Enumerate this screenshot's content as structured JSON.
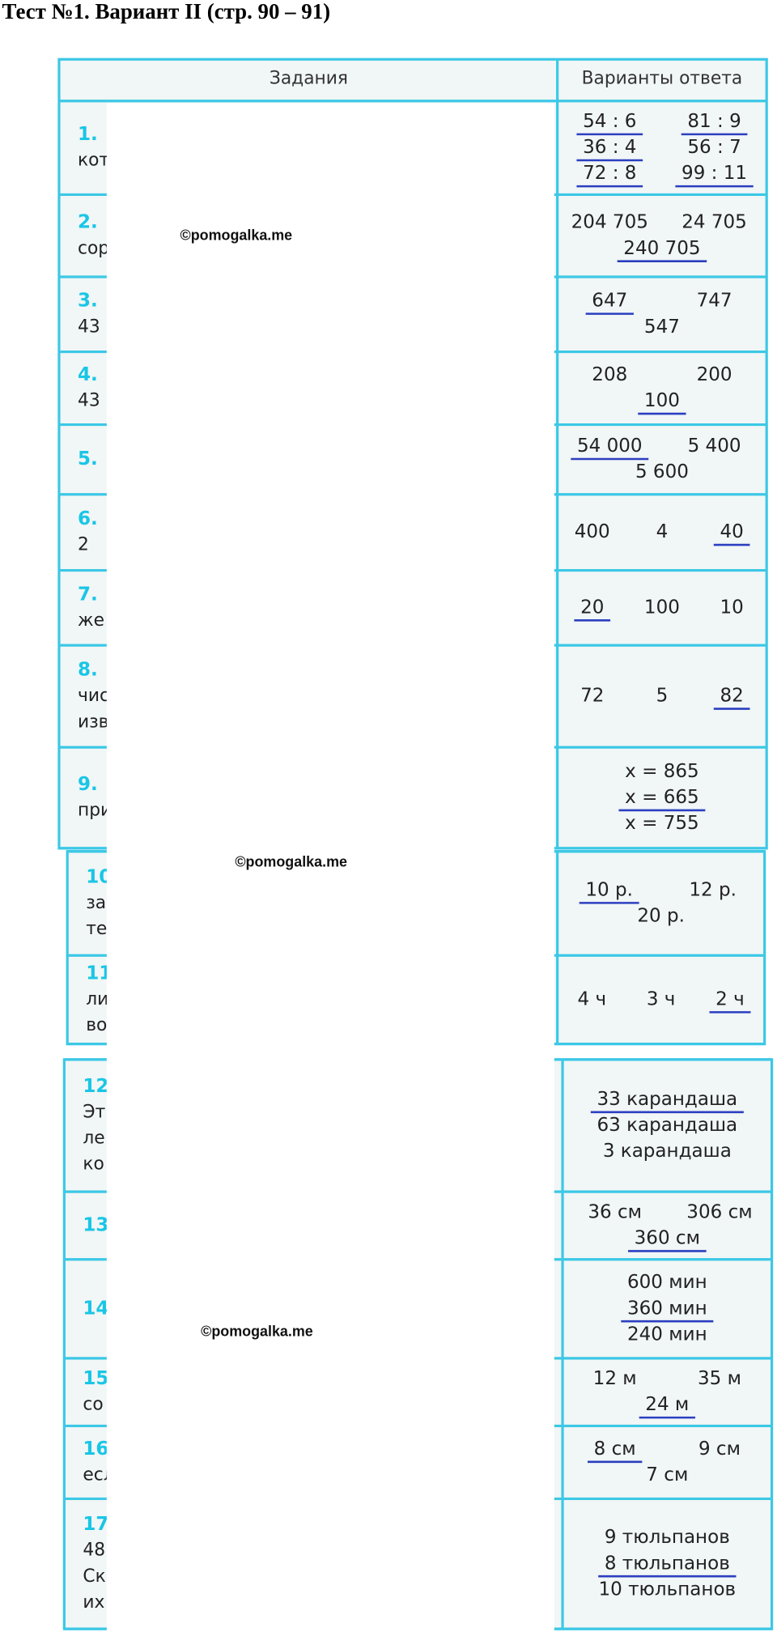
{
  "header": {
    "title": "Тест №1. Вариант II (стр. 90 – 91)"
  },
  "table": {
    "columns": [
      "Задания",
      "Варианты  ответа"
    ],
    "rows": [
      {
        "number": "1.",
        "fragments": [
          "кот"
        ],
        "answers": [
          [
            {
              "text": "54 : 6",
              "correct": true
            },
            {
              "text": "81 : 9",
              "correct": true
            }
          ],
          [
            {
              "text": "36 : 4",
              "correct": true
            },
            {
              "text": "56 : 7",
              "correct": false
            }
          ],
          [
            {
              "text": "72 : 8",
              "correct": true
            },
            {
              "text": "99 : 11",
              "correct": true
            }
          ]
        ]
      },
      {
        "number": "2.",
        "fragments": [
          "сор"
        ],
        "answers": [
          [
            {
              "text": "204 705",
              "correct": false
            },
            {
              "text": "24 705",
              "correct": false
            }
          ],
          [
            {
              "text": "240 705",
              "correct": true
            }
          ]
        ]
      },
      {
        "number": "3.",
        "fragments": [
          "43"
        ],
        "answers": [
          [
            {
              "text": "647",
              "correct": true
            },
            {
              "text": "747",
              "correct": false
            }
          ],
          [
            {
              "text": "547",
              "correct": false
            }
          ]
        ]
      },
      {
        "number": "4.",
        "fragments": [
          "43"
        ],
        "answers": [
          [
            {
              "text": "208",
              "correct": false
            },
            {
              "text": "200",
              "correct": false
            }
          ],
          [
            {
              "text": "100",
              "correct": true
            }
          ]
        ]
      },
      {
        "number": "5.",
        "fragments": [],
        "answers": [
          [
            {
              "text": "54 000",
              "correct": true
            },
            {
              "text": "5 400",
              "correct": false
            }
          ],
          [
            {
              "text": "5 600",
              "correct": false
            }
          ]
        ]
      },
      {
        "number": "6.",
        "fragments": [
          "2"
        ],
        "answers": [
          [
            {
              "text": "400",
              "correct": false
            },
            {
              "text": "4",
              "correct": false
            },
            {
              "text": "40",
              "correct": true
            }
          ]
        ]
      },
      {
        "number": "7.",
        "fragments": [
          "же"
        ],
        "answers": [
          [
            {
              "text": "20",
              "correct": true
            },
            {
              "text": "100",
              "correct": false
            },
            {
              "text": "10",
              "correct": false
            }
          ]
        ]
      },
      {
        "number": "8.",
        "fragments": [
          "чис",
          "изв"
        ],
        "answers": [
          [
            {
              "text": "72",
              "correct": false
            },
            {
              "text": "5",
              "correct": false
            },
            {
              "text": "82",
              "correct": true
            }
          ]
        ]
      },
      {
        "number": "9.",
        "fragments": [
          "при"
        ],
        "answers": [
          [
            {
              "text": "x = 865",
              "correct": false
            }
          ],
          [
            {
              "text": "x = 665",
              "correct": true
            }
          ],
          [
            {
              "text": "x = 755",
              "correct": false
            }
          ]
        ]
      },
      {
        "number": "10",
        "fragments": [
          "за",
          "те"
        ],
        "answers": [
          [
            {
              "text": "10  р.",
              "correct": true
            },
            {
              "text": "12  р.",
              "correct": false
            }
          ],
          [
            {
              "text": "20  р.",
              "correct": false
            }
          ]
        ]
      },
      {
        "number": "11",
        "fragments": [
          "ли",
          "во"
        ],
        "answers": [
          [
            {
              "text": "4 ч",
              "correct": false
            },
            {
              "text": "3 ч",
              "correct": false
            },
            {
              "text": "2 ч",
              "correct": true
            }
          ]
        ]
      },
      {
        "number": "12",
        "fragments": [
          "Эт",
          "ле",
          "ко"
        ],
        "answers": [
          [
            {
              "text": "33  карандаша",
              "correct": true
            }
          ],
          [
            {
              "text": "63  карандаша",
              "correct": false
            }
          ],
          [
            {
              "text": "3  карандаша",
              "correct": false
            }
          ]
        ]
      },
      {
        "number": "13",
        "fragments": [],
        "answers": [
          [
            {
              "text": "36  см",
              "correct": false
            },
            {
              "text": "306  см",
              "correct": false
            }
          ],
          [
            {
              "text": "360  см",
              "correct": true
            }
          ]
        ]
      },
      {
        "number": "14",
        "fragments": [],
        "answers": [
          [
            {
              "text": "600  мин",
              "correct": false
            }
          ],
          [
            {
              "text": "360  мин",
              "correct": true
            }
          ],
          [
            {
              "text": "240  мин",
              "correct": false
            }
          ]
        ]
      },
      {
        "number": "15",
        "fragments": [
          "со"
        ],
        "answers": [
          [
            {
              "text": "12  м",
              "correct": false
            },
            {
              "text": "35  м",
              "correct": false
            }
          ],
          [
            {
              "text": "24  м",
              "correct": true
            }
          ]
        ]
      },
      {
        "number": "16.",
        "fragments": [
          "есл"
        ],
        "answers": [
          [
            {
              "text": "8  см",
              "correct": true
            },
            {
              "text": "9  см",
              "correct": false
            }
          ],
          [
            {
              "text": "7  см",
              "correct": false
            }
          ]
        ]
      },
      {
        "number": "17",
        "fragments": [
          "48",
          "Ск",
          "их"
        ],
        "answers": [
          [
            {
              "text": "9  тюльпанов",
              "correct": false
            }
          ],
          [
            {
              "text": "8  тюльпанов",
              "correct": true
            }
          ],
          [
            {
              "text": "10  тюльпанов",
              "correct": false
            }
          ]
        ]
      }
    ]
  },
  "watermarks": [
    "©pomogalka.me",
    "©pomogalka.me",
    "©pomogalka.me"
  ]
}
